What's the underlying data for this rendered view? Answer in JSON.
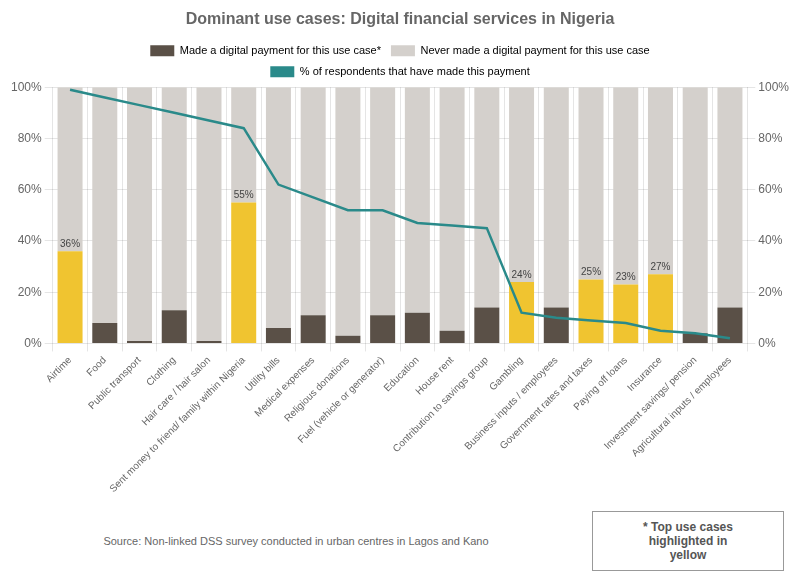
{
  "chart_data": {
    "type": "bar",
    "title": "Dominant use cases: Digital financial services in Nigeria",
    "categories": [
      "Airtime",
      "Food",
      "Public transport",
      "Clothing",
      "Hair care / hair salon",
      "Sent money to friend/ family within Nigeria",
      "Utility bills",
      "Medical expenses",
      "Religious donations",
      "Fuel (vehicle or generator)",
      "Education",
      "House rent",
      "Contribution to savings group",
      "Gambling",
      "Business inputs / employees",
      "Government rates and taxes",
      "Paying off loans",
      "Insurance",
      "Investment savings/ pension",
      "Agricultural inputs / employees"
    ],
    "stacked": true,
    "grid": true,
    "legend": "top",
    "series": [
      {
        "name": "Made a digital payment for this use case*",
        "color": "#5a5047",
        "colors": [
          "#f0c430",
          "#5a5047",
          "#5a5047",
          "#5a5047",
          "#5a5047",
          "#f0c430",
          "#5a5047",
          "#5a5047",
          "#5a5047",
          "#5a5047",
          "#5a5047",
          "#5a5047",
          "#5a5047",
          "#f0c430",
          "#5a5047",
          "#f0c430",
          "#f0c430",
          "#f0c430",
          "#5a5047",
          "#5a5047"
        ],
        "values": [
          36,
          8,
          1,
          13,
          1,
          55,
          6,
          11,
          3,
          11,
          12,
          5,
          14,
          24,
          14,
          25,
          23,
          27,
          4,
          14
        ],
        "value_labels": [
          "36%",
          null,
          null,
          null,
          null,
          "55%",
          null,
          null,
          null,
          null,
          null,
          null,
          null,
          "24%",
          null,
          "25%",
          "23%",
          "27%",
          null,
          null
        ]
      },
      {
        "name": "Never made a digital payment for this use case",
        "color": "#d4d0cc",
        "values": [
          64,
          92,
          99,
          87,
          99,
          45,
          94,
          89,
          97,
          89,
          88,
          95,
          86,
          76,
          86,
          75,
          77,
          73,
          96,
          86
        ]
      },
      {
        "name": "% of respondents that have made this payment",
        "type": "line",
        "axis": "y2",
        "color": "#2a8a8a",
        "values": [
          99,
          96,
          93,
          90,
          87,
          84,
          62,
          57,
          52,
          52,
          47,
          46,
          45,
          12,
          10,
          9,
          8,
          5,
          4,
          2
        ]
      }
    ],
    "ylim": [
      0,
      100
    ],
    "yticks": [
      {
        "value": 0,
        "label": "0%"
      },
      {
        "value": 20,
        "label": "20%"
      },
      {
        "value": 40,
        "label": "40%"
      },
      {
        "value": 60,
        "label": "60%"
      },
      {
        "value": 80,
        "label": "80%"
      },
      {
        "value": 100,
        "label": "100%"
      }
    ],
    "y2lim": [
      0,
      100
    ],
    "y2ticks": [
      {
        "value": 0,
        "label": "0%"
      },
      {
        "value": 20,
        "label": "20%"
      },
      {
        "value": 40,
        "label": "40%"
      },
      {
        "value": 60,
        "label": "60%"
      },
      {
        "value": 80,
        "label": "80%"
      },
      {
        "value": 100,
        "label": "100%"
      }
    ],
    "annotations": [
      "Source: Non-linked DSS survey conducted in urban centres in Lagos and Kano",
      "* Top use cases\nhighlighted in\nyellow"
    ]
  }
}
